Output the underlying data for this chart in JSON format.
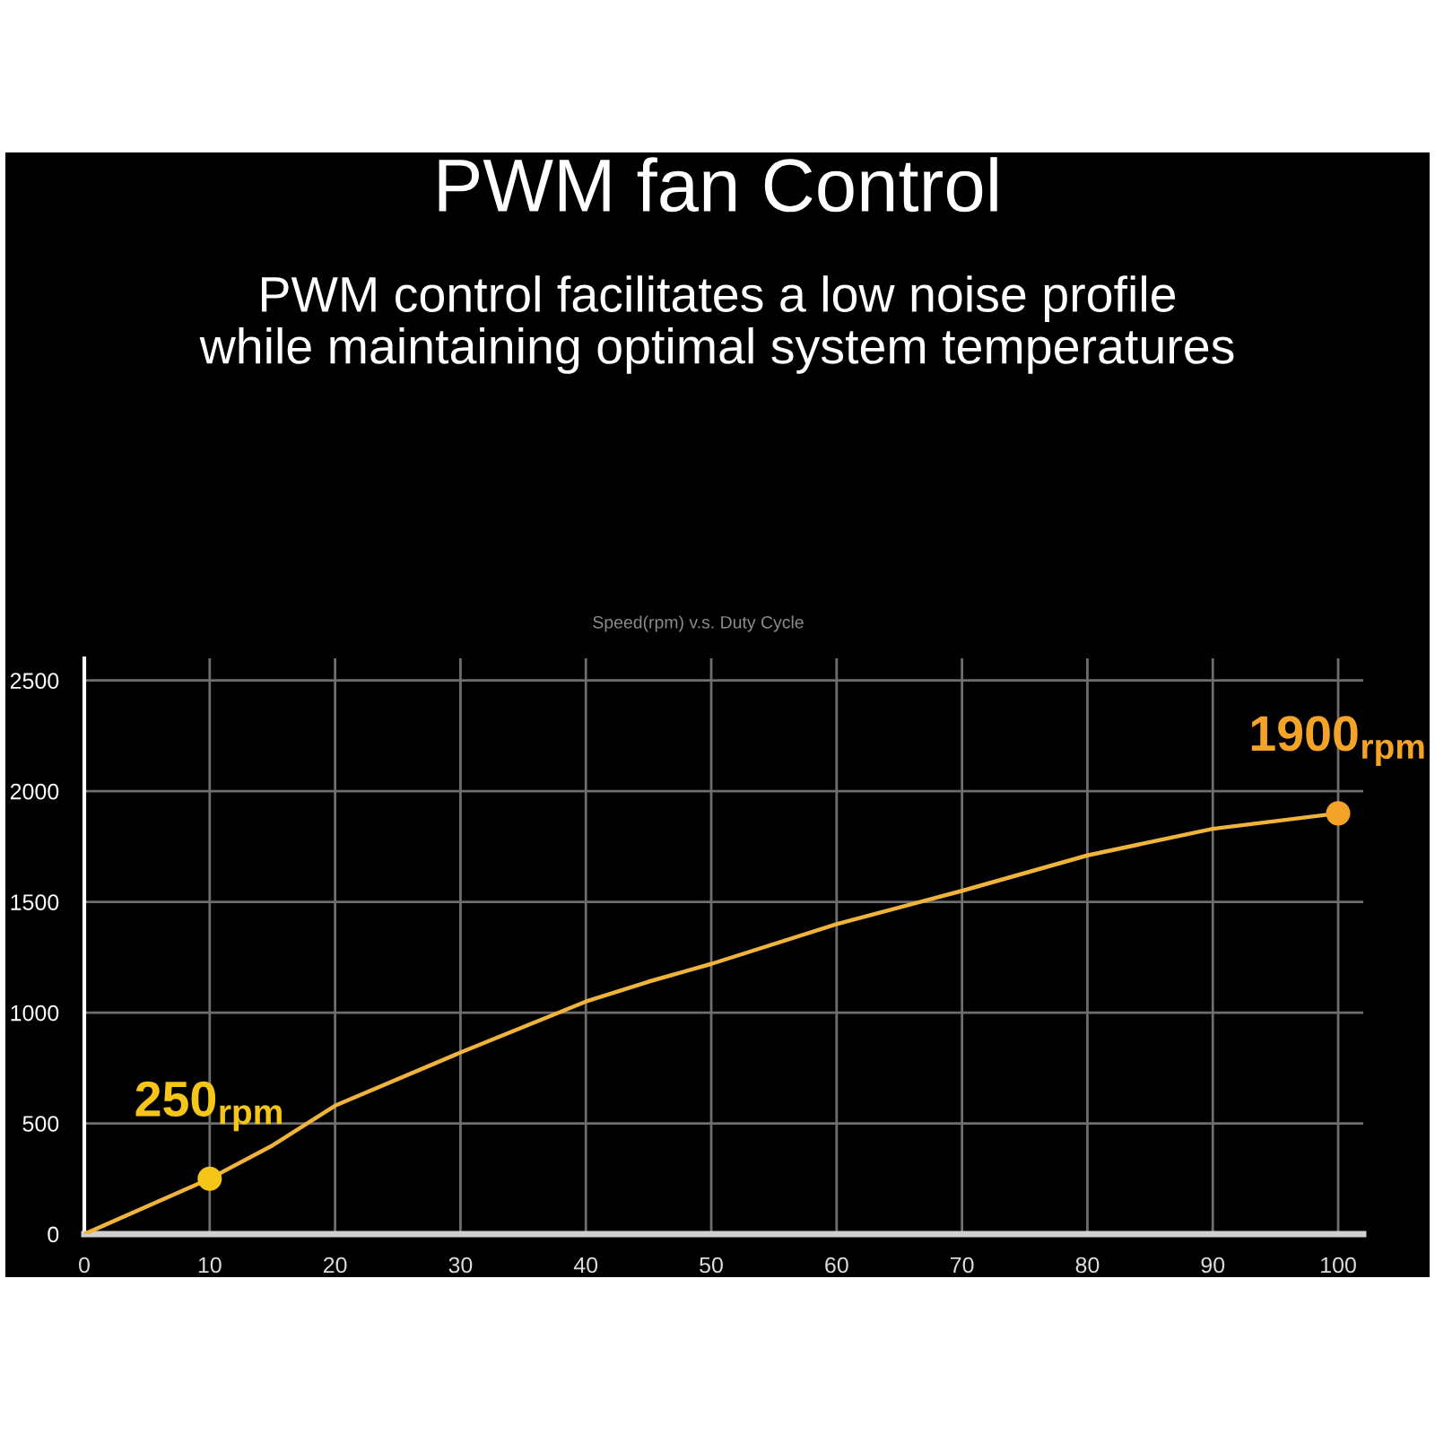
{
  "chart_data": {
    "type": "line",
    "title": "PWM fan Control",
    "subtitle": "PWM control facilitates a low noise profile\nwhile maintaining optimal system temperatures",
    "annotations": [
      "Speed(rpm) v.s. Duty Cycle"
    ],
    "xlim": [
      0,
      102
    ],
    "xticks": [
      0,
      10,
      20,
      30,
      40,
      50,
      60,
      70,
      80,
      90,
      100
    ],
    "ylim": [
      0,
      2600
    ],
    "yticks": [
      0,
      500,
      1000,
      1500,
      2000,
      2500
    ],
    "grid": true,
    "series": [
      {
        "color": "#f0b43c",
        "line_style": "solid",
        "x": [
          0,
          10,
          15,
          20,
          30,
          40,
          45,
          50,
          60,
          70,
          80,
          90,
          100
        ],
        "values": [
          0,
          250,
          400,
          580,
          820,
          1050,
          1140,
          1220,
          1400,
          1550,
          1710,
          1830,
          1900
        ]
      },
      {
        "type": "scatter",
        "marker": "circle",
        "colors": [
          "#f5c518",
          "#f2a328"
        ],
        "x": [
          10,
          100
        ],
        "values": [
          250,
          1900
        ],
        "value_labels": [
          "250$_{rpm}$",
          "1900$_{rpm}$"
        ]
      }
    ]
  }
}
